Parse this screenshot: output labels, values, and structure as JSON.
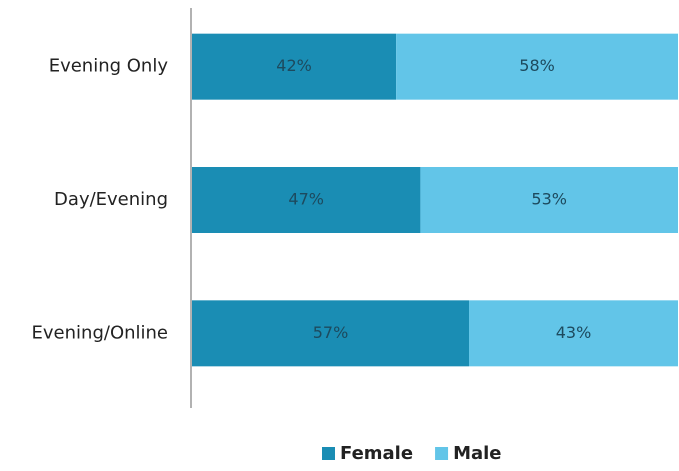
{
  "chart_data": {
    "type": "stacked_bar_horizontal",
    "categories": [
      "Evening Only",
      "Day/Evening",
      "Evening/Online"
    ],
    "series": [
      {
        "name": "Female",
        "color": "#1a8db4",
        "values": [
          42,
          47,
          57
        ],
        "value_labels": [
          "42%",
          "47%",
          "57%"
        ]
      },
      {
        "name": "Male",
        "color": "#62c5e8",
        "values": [
          58,
          53,
          43
        ],
        "value_labels": [
          "58%",
          "53%",
          "43%"
        ]
      }
    ],
    "xlim": [
      0,
      100
    ],
    "legend": "bottom"
  }
}
